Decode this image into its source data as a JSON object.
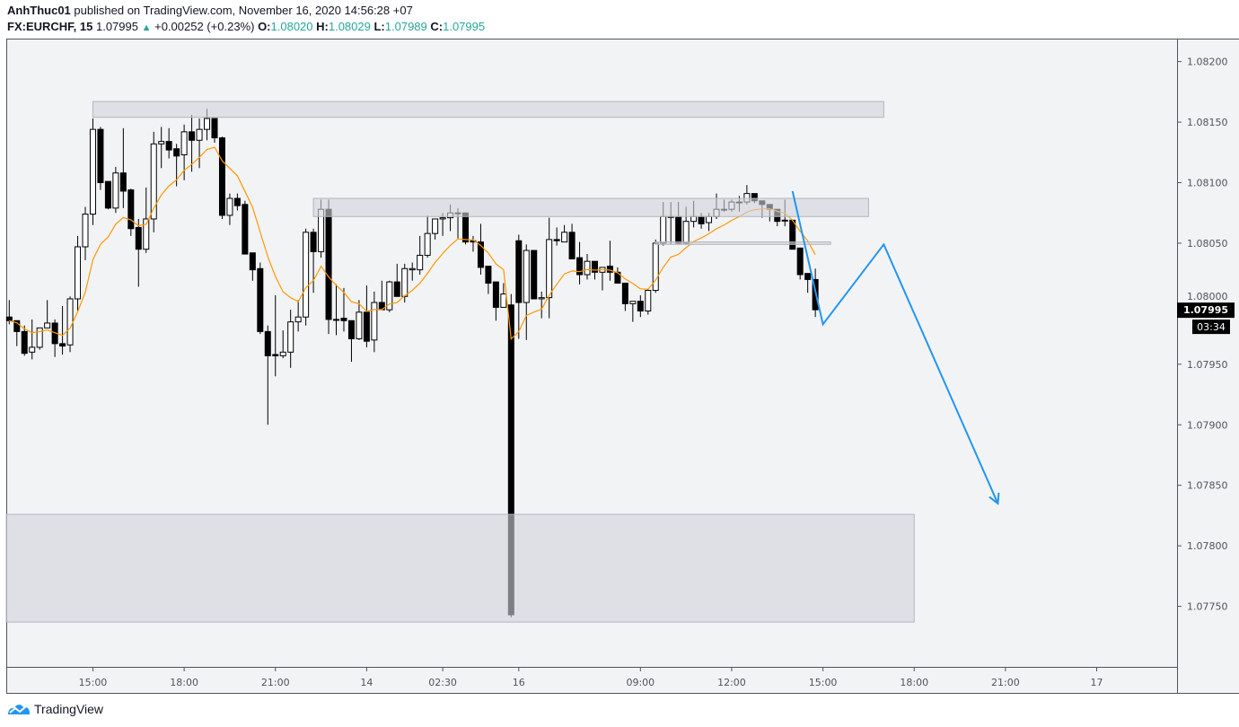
{
  "header": {
    "author": "AnhThuc01",
    "published_text": "published on TradingView.com, November 16, 2020 14:56:28 +07",
    "symbol": "FX:EURCHF, 15",
    "last_price": "1.07995",
    "change": "+0.00252 (+0.23%)",
    "o_label": "O:",
    "o_value": "1.08020",
    "h_label": "H:",
    "h_value": "1.08029",
    "l_label": "L:",
    "l_value": "1.07989",
    "c_label": "C:",
    "c_value": "1.07995",
    "change_icon": "triangle-up-icon"
  },
  "footer": {
    "brand": "TradingView",
    "logo_icon": "tradingview-cloud-logo"
  },
  "colors": {
    "background": "#f2f3f5",
    "bull_body": "#ffffff",
    "bear_body": "#000000",
    "moving_average": "#ff9800",
    "drawing_line": "#2196f3",
    "zone_fill": "#d1d4dc",
    "accent_text": "#26a69a"
  },
  "chart_data": {
    "type": "candlestick",
    "title": "FX:EURCHF, 15",
    "interval_minutes": 15,
    "first_bar_time": "2020-11-13 12:15",
    "session_gap": {
      "after": "2020-11-14 04:45",
      "resume": "2020-11-16 05:00"
    },
    "ylim": [
      1.077,
      1.08219
    ],
    "grid": false,
    "ohlc": [
      [
        1.07989,
        1.08003,
        1.07983,
        1.07986
      ],
      [
        1.07986,
        1.07986,
        1.07965,
        1.07977
      ],
      [
        1.07977,
        1.07982,
        1.07957,
        1.07959
      ],
      [
        1.0796,
        1.07987,
        1.07954,
        1.07964
      ],
      [
        1.07964,
        1.0798,
        1.07962,
        1.0798
      ],
      [
        1.0798,
        1.08003,
        1.0798,
        1.07984
      ],
      [
        1.07984,
        1.07987,
        1.07956,
        1.07967
      ],
      [
        1.07967,
        1.07998,
        1.07958,
        1.07965
      ],
      [
        1.07966,
        1.08006,
        1.0796,
        1.08004
      ],
      [
        1.08004,
        1.08056,
        1.07994,
        1.08047
      ],
      [
        1.08047,
        1.0808,
        1.08036,
        1.08074
      ],
      [
        1.08074,
        1.08153,
        1.08065,
        1.08144
      ],
      [
        1.08144,
        1.08146,
        1.08094,
        1.081
      ],
      [
        1.08101,
        1.08101,
        1.08078,
        1.08079
      ],
      [
        1.08079,
        1.08113,
        1.08075,
        1.08108
      ],
      [
        1.08108,
        1.08145,
        1.08079,
        1.08093
      ],
      [
        1.08094,
        1.08095,
        1.08056,
        1.08062
      ],
      [
        1.08063,
        1.0807,
        1.08014,
        1.08045
      ],
      [
        1.08045,
        1.08096,
        1.08042,
        1.0807
      ],
      [
        1.0807,
        1.08142,
        1.08059,
        1.08132
      ],
      [
        1.08132,
        1.08146,
        1.08112,
        1.08134
      ],
      [
        1.08134,
        1.08145,
        1.0812,
        1.08127
      ],
      [
        1.08128,
        1.08132,
        1.08097,
        1.08122
      ],
      [
        1.08123,
        1.08148,
        1.08102,
        1.08142
      ],
      [
        1.08142,
        1.08156,
        1.08109,
        1.08135
      ],
      [
        1.08135,
        1.08153,
        1.08112,
        1.08144
      ],
      [
        1.08144,
        1.08161,
        1.08135,
        1.08153
      ],
      [
        1.08153,
        1.08153,
        1.08133,
        1.08137
      ],
      [
        1.08137,
        1.08138,
        1.0807,
        1.08073
      ],
      [
        1.08073,
        1.08091,
        1.08065,
        1.08087
      ],
      [
        1.08087,
        1.08091,
        1.08077,
        1.08081
      ],
      [
        1.08082,
        1.08085,
        1.08041,
        1.08041
      ],
      [
        1.08042,
        1.08042,
        1.08019,
        1.08028
      ],
      [
        1.08029,
        1.08034,
        1.07975,
        1.07977
      ],
      [
        1.07977,
        1.07982,
        1.079,
        1.07957
      ],
      [
        1.07958,
        1.08007,
        1.0794,
        1.07957
      ],
      [
        1.07957,
        1.07978,
        1.07955,
        1.0796
      ],
      [
        1.0796,
        1.07995,
        1.07947,
        1.07985
      ],
      [
        1.07985,
        1.08003,
        1.07977,
        1.07989
      ],
      [
        1.07989,
        1.08062,
        1.07982,
        1.08059
      ],
      [
        1.08059,
        1.08062,
        1.08009,
        1.08043
      ],
      [
        1.08043,
        1.08086,
        1.08038,
        1.08078
      ],
      [
        1.08078,
        1.08086,
        1.07975,
        1.07987
      ],
      [
        1.07987,
        1.08016,
        1.07974,
        1.07987
      ],
      [
        1.07988,
        1.08013,
        1.07977,
        1.07986
      ],
      [
        1.07986,
        1.07986,
        1.07952,
        1.07971
      ],
      [
        1.07971,
        1.08003,
        1.0797,
        1.07993
      ],
      [
        1.07993,
        1.08015,
        1.07964,
        1.07969
      ],
      [
        1.0797,
        1.0801,
        1.0796,
        1.08001
      ],
      [
        1.08001,
        1.08019,
        1.07995,
        1.07995
      ],
      [
        1.07995,
        1.08019,
        1.07993,
        1.08018
      ],
      [
        1.08018,
        1.08033,
        1.08006,
        1.08006
      ],
      [
        1.08006,
        1.08033,
        1.08001,
        1.08029
      ],
      [
        1.08028,
        1.08034,
        1.08019,
        1.08029
      ],
      [
        1.08028,
        1.08056,
        1.08024,
        1.0804
      ],
      [
        1.0804,
        1.08073,
        1.08038,
        1.08058
      ],
      [
        1.08058,
        1.0807,
        1.08053,
        1.0807
      ],
      [
        1.0807,
        1.08075,
        1.08056,
        1.08071
      ],
      [
        1.08071,
        1.08082,
        1.0806,
        1.08075
      ],
      [
        1.08075,
        1.08079,
        1.08054,
        1.08075
      ],
      [
        1.08075,
        1.08075,
        1.08049,
        1.08051
      ],
      [
        1.08052,
        1.08056,
        1.08043,
        1.08051
      ],
      [
        1.08051,
        1.08066,
        1.08024,
        1.0803
      ],
      [
        1.08031,
        1.08031,
        1.08008,
        1.08017
      ],
      [
        1.08018,
        1.08018,
        1.07986,
        1.07997
      ],
      [
        1.07997,
        1.08017,
        1.07997,
        1.08008
      ],
      [
        1.07999,
        1.08008,
        1.07741,
        1.07743
      ],
      [
        1.08052,
        1.08057,
        1.07971,
        1.08001
      ],
      [
        1.08001,
        1.08049,
        1.0797,
        1.08044
      ],
      [
        1.08044,
        1.08044,
        1.08004,
        1.08004
      ],
      [
        1.08004,
        1.0801,
        1.07988,
        1.08005
      ],
      [
        1.08005,
        1.08071,
        1.07988,
        1.08053
      ],
      [
        1.08053,
        1.08063,
        1.08048,
        1.08052
      ],
      [
        1.08051,
        1.08065,
        1.08051,
        1.08059
      ],
      [
        1.08059,
        1.08066,
        1.08037,
        1.08037
      ],
      [
        1.08038,
        1.08051,
        1.08016,
        1.08024
      ],
      [
        1.08024,
        1.08041,
        1.0802,
        1.08035
      ],
      [
        1.08035,
        1.08035,
        1.0802,
        1.08026
      ],
      [
        1.08026,
        1.0803,
        1.08011,
        1.0803
      ],
      [
        1.08031,
        1.08052,
        1.08019,
        1.08026
      ],
      [
        1.08026,
        1.0803,
        1.08017,
        1.08017
      ],
      [
        1.08017,
        1.08017,
        1.07994,
        1.08
      ],
      [
        1.08,
        1.08002,
        1.07985,
        1.08002
      ],
      [
        1.08002,
        1.08007,
        1.07989,
        1.07994
      ],
      [
        1.07994,
        1.08012,
        1.07991,
        1.08011
      ],
      [
        1.08011,
        1.08053,
        1.08009,
        1.0805
      ],
      [
        1.0805,
        1.08084,
        1.08048,
        1.08072
      ],
      [
        1.08072,
        1.08084,
        1.08049,
        1.08072
      ],
      [
        1.08072,
        1.08084,
        1.08049,
        1.0805
      ],
      [
        1.0805,
        1.0808,
        1.08049,
        1.08068
      ],
      [
        1.08068,
        1.08085,
        1.08063,
        1.08072
      ],
      [
        1.08072,
        1.08075,
        1.08062,
        1.08066
      ],
      [
        1.08067,
        1.08075,
        1.0806,
        1.08072
      ],
      [
        1.08072,
        1.08091,
        1.0807,
        1.08078
      ],
      [
        1.08078,
        1.08086,
        1.08076,
        1.08078
      ],
      [
        1.08078,
        1.08086,
        1.08076,
        1.08084
      ],
      [
        1.08084,
        1.08089,
        1.08076,
        1.08084
      ],
      [
        1.08084,
        1.08098,
        1.08082,
        1.08091
      ],
      [
        1.08091,
        1.08091,
        1.08083,
        1.08085
      ],
      [
        1.08085,
        1.08085,
        1.08071,
        1.08082
      ],
      [
        1.08082,
        1.08082,
        1.08068,
        1.08078
      ],
      [
        1.08078,
        1.08078,
        1.08064,
        1.08068
      ],
      [
        1.08069,
        1.08086,
        1.08064,
        1.08069
      ],
      [
        1.08069,
        1.08069,
        1.08045,
        1.08045
      ],
      [
        1.08046,
        1.08046,
        1.0802,
        1.08024
      ],
      [
        1.08025,
        1.08025,
        1.08009,
        1.0802
      ],
      [
        1.0802,
        1.08029,
        1.07989,
        1.07995
      ]
    ],
    "price_ticks": [
      "1.08200",
      "1.08150",
      "1.08100",
      "1.08050",
      "1.08000",
      "1.07950",
      "1.07900",
      "1.07850",
      "1.07800",
      "1.07750"
    ],
    "time_ticks": [
      {
        "label": "15:00",
        "time": "2020-11-13 15:00"
      },
      {
        "label": "18:00",
        "time": "2020-11-13 18:00"
      },
      {
        "label": "21:00",
        "time": "2020-11-13 21:00"
      },
      {
        "label": "14",
        "time": "2020-11-14 00:00"
      },
      {
        "label": "02:30",
        "time": "2020-11-14 02:30"
      },
      {
        "label": "16",
        "time": "2020-11-16 05:00"
      },
      {
        "label": "09:00",
        "time": "2020-11-16 09:00"
      },
      {
        "label": "12:00",
        "time": "2020-11-16 12:00"
      },
      {
        "label": "15:00",
        "time": "2020-11-16 15:00"
      },
      {
        "label": "18:00",
        "time": "2020-11-16 18:00"
      },
      {
        "label": "21:00",
        "time": "2020-11-16 21:00"
      },
      {
        "label": "17",
        "time": "2020-11-17 00:00"
      }
    ],
    "last_price_label": "1.07995",
    "countdown_label": "03:34",
    "drawings": {
      "zones": [
        {
          "from": "2020-11-13 15:00",
          "to": "2020-11-16 17:00",
          "top": 1.08167,
          "bottom": 1.08154
        },
        {
          "from": "2020-11-13 22:15",
          "to": "2020-11-16 16:30",
          "top": 1.08087,
          "bottom": 1.08072
        },
        {
          "from": "2020-11-13 12:00",
          "to": "2020-11-16 18:00",
          "top": 1.07826,
          "bottom": 1.07737
        },
        {
          "from": "2020-11-16 09:30",
          "to": "2020-11-16 15:15",
          "top": 1.08051,
          "bottom": 1.08049
        }
      ],
      "projection_path": [
        {
          "time": "2020-11-16 14:00",
          "price": 1.08093
        },
        {
          "time": "2020-11-16 15:00",
          "price": 1.07983
        },
        {
          "time": "2020-11-16 17:00",
          "price": 1.08049
        },
        {
          "time": "2020-11-16 20:45",
          "price": 1.07835
        }
      ]
    }
  }
}
